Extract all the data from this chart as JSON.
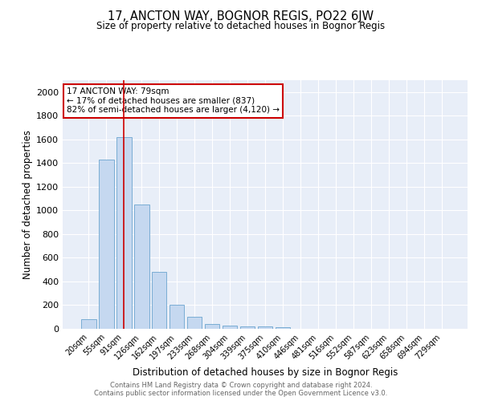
{
  "title1": "17, ANCTON WAY, BOGNOR REGIS, PO22 6JW",
  "title2": "Size of property relative to detached houses in Bognor Regis",
  "xlabel": "Distribution of detached houses by size in Bognor Regis",
  "ylabel": "Number of detached properties",
  "bar_labels": [
    "20sqm",
    "55sqm",
    "91sqm",
    "126sqm",
    "162sqm",
    "197sqm",
    "233sqm",
    "268sqm",
    "304sqm",
    "339sqm",
    "375sqm",
    "410sqm",
    "446sqm",
    "481sqm",
    "516sqm",
    "552sqm",
    "587sqm",
    "623sqm",
    "658sqm",
    "694sqm",
    "729sqm"
  ],
  "bar_values": [
    80,
    1430,
    1620,
    1050,
    480,
    205,
    100,
    42,
    28,
    20,
    18,
    15,
    0,
    0,
    0,
    0,
    0,
    0,
    0,
    0,
    0
  ],
  "annotation_line1": "17 ANCTON WAY: 79sqm",
  "annotation_line2": "← 17% of detached houses are smaller (837)",
  "annotation_line3": "82% of semi-detached houses are larger (4,120) →",
  "bar_color": "#c5d8f0",
  "bar_edge_color": "#7aadd4",
  "line_color": "#cc0000",
  "annotation_box_color": "#ffffff",
  "annotation_box_edge": "#cc0000",
  "background_color": "#e8eef8",
  "footer1": "Contains HM Land Registry data © Crown copyright and database right 2024.",
  "footer2": "Contains public sector information licensed under the Open Government Licence v3.0.",
  "ylim": [
    0,
    2100
  ],
  "yticks": [
    0,
    200,
    400,
    600,
    800,
    1000,
    1200,
    1400,
    1600,
    1800,
    2000
  ]
}
